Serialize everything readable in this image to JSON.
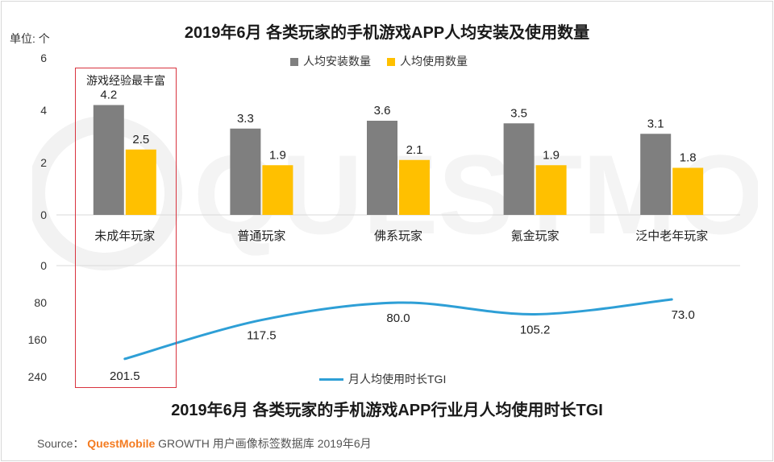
{
  "title": "2019年6月 各类玩家的手机游戏APP人均安装及使用数量",
  "subtitle": "2019年6月 各类玩家的手机游戏APP行业月人均使用时长TGI",
  "unit_label": "单位: 个",
  "callout_label": "游戏经验最丰富",
  "source": {
    "prefix": "Source：",
    "brand": "QuestMobile",
    "rest": " GROWTH 用户画像标签数据库 2019年6月"
  },
  "chart_data": [
    {
      "type": "bar",
      "categories": [
        "未成年玩家",
        "普通玩家",
        "佛系玩家",
        "氪金玩家",
        "泛中老年玩家"
      ],
      "series": [
        {
          "name": "人均安装数量",
          "values": [
            4.2,
            3.3,
            3.6,
            3.5,
            3.1
          ],
          "color": "#7f7f7f"
        },
        {
          "name": "人均使用数量",
          "values": [
            2.5,
            1.9,
            2.1,
            1.9,
            1.8
          ],
          "color": "#ffc000"
        }
      ],
      "yticks": [
        "6",
        "4",
        "2",
        "0"
      ],
      "ylim": [
        0,
        6
      ]
    },
    {
      "type": "line",
      "categories": [
        "未成年玩家",
        "普通玩家",
        "佛系玩家",
        "氪金玩家",
        "泛中老年玩家"
      ],
      "series": [
        {
          "name": "月人均使用时长TGI",
          "values": [
            201.5,
            117.5,
            80.0,
            105.2,
            73.0
          ],
          "labels": [
            "201.5",
            "117.5",
            "80.0",
            "105.2",
            "73.0"
          ],
          "color": "#2e9fd6"
        }
      ],
      "yticks": [
        "0",
        "80",
        "160",
        "240"
      ],
      "ylim": [
        0,
        240
      ],
      "y_inverted": true
    }
  ]
}
